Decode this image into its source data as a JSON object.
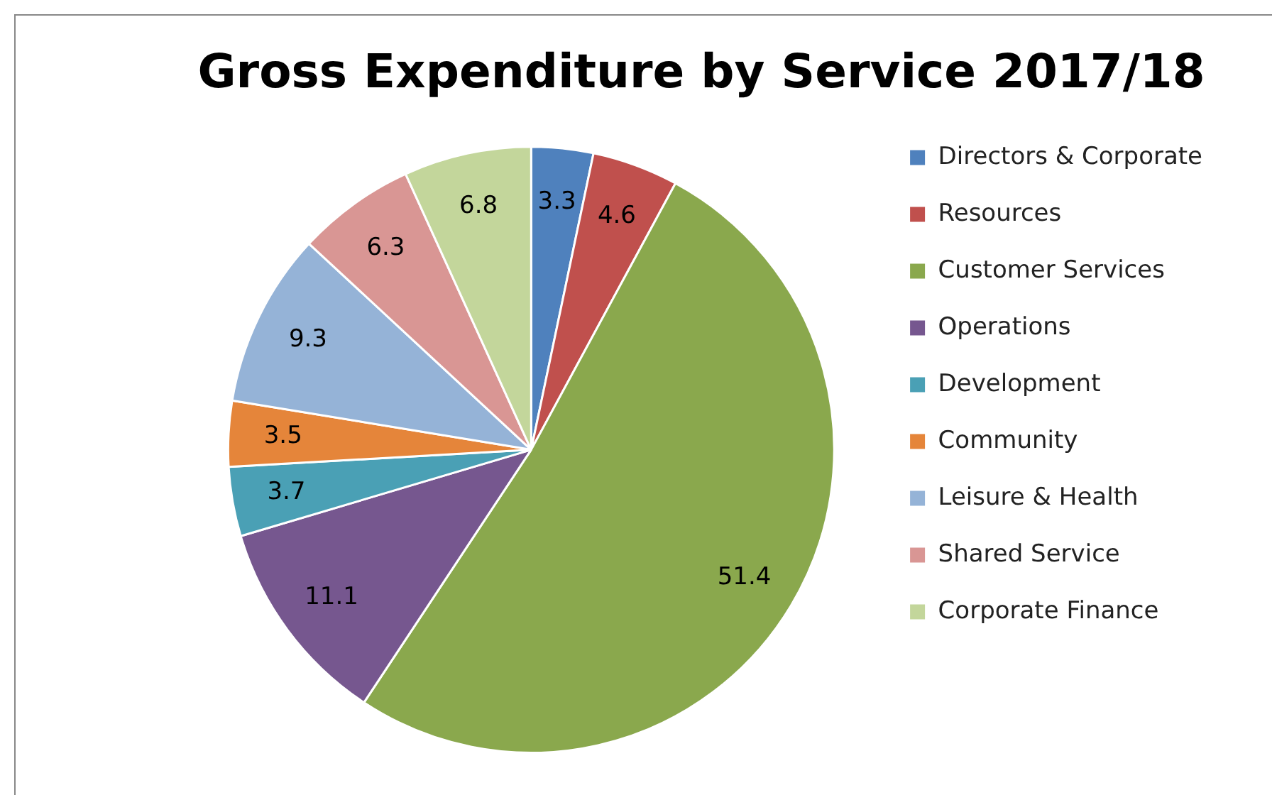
{
  "chart_data": {
    "type": "pie",
    "title": "Gross Expenditure by Service 2017/18",
    "categories": [
      "Directors & Corporate",
      "Resources",
      "Customer Services",
      "Operations",
      "Development",
      "Community",
      "Leisure & Health",
      "Shared Service",
      "Corporate Finance"
    ],
    "values": [
      3.3,
      4.6,
      51.4,
      11.1,
      3.7,
      3.5,
      9.3,
      6.3,
      6.8
    ],
    "colors": [
      "#4f81bd",
      "#c0504d",
      "#8aa84d",
      "#76578f",
      "#4aa0b5",
      "#e5853a",
      "#95b3d7",
      "#d99694",
      "#c3d69b"
    ],
    "data_labels": true,
    "legend": "right"
  }
}
